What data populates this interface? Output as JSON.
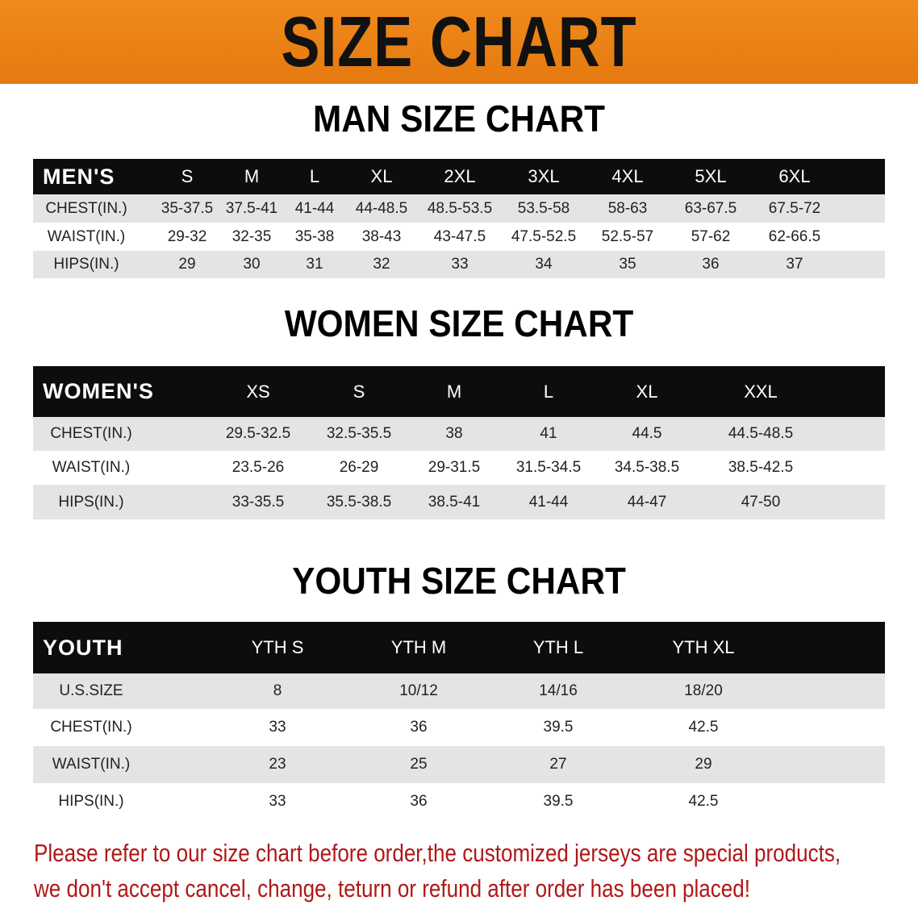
{
  "banner": {
    "title": "SIZE CHART",
    "background_color": "#ee8418"
  },
  "men": {
    "title": "MAN SIZE CHART",
    "header": [
      "MEN'S",
      "S",
      "M",
      "L",
      "XL",
      "2XL",
      "3XL",
      "4XL",
      "5XL",
      "6XL"
    ],
    "rows": [
      [
        "CHEST(IN.)",
        "35-37.5",
        "37.5-41",
        "41-44",
        "44-48.5",
        "48.5-53.5",
        "53.5-58",
        "58-63",
        "63-67.5",
        "67.5-72"
      ],
      [
        "WAIST(IN.)",
        "29-32",
        "32-35",
        "35-38",
        "38-43",
        "43-47.5",
        "47.5-52.5",
        "52.5-57",
        "57-62",
        "62-66.5"
      ],
      [
        "HIPS(IN.)",
        "29",
        "30",
        "31",
        "32",
        "33",
        "34",
        "35",
        "36",
        "37"
      ]
    ]
  },
  "women": {
    "title": "WOMEN SIZE CHART",
    "header": [
      "WOMEN'S",
      "XS",
      "S",
      "M",
      "L",
      "XL",
      "XXL"
    ],
    "rows": [
      [
        "CHEST(IN.)",
        "29.5-32.5",
        "32.5-35.5",
        "38",
        "41",
        "44.5",
        "44.5-48.5"
      ],
      [
        "WAIST(IN.)",
        "23.5-26",
        "26-29",
        "29-31.5",
        "31.5-34.5",
        "34.5-38.5",
        "38.5-42.5"
      ],
      [
        "HIPS(IN.)",
        "33-35.5",
        "35.5-38.5",
        "38.5-41",
        "41-44",
        "44-47",
        "47-50"
      ]
    ]
  },
  "youth": {
    "title": "YOUTH SIZE CHART",
    "header": [
      "YOUTH",
      "YTH S",
      "YTH M",
      "YTH L",
      "YTH XL"
    ],
    "rows": [
      [
        "U.S.SIZE",
        "8",
        "10/12",
        "14/16",
        "18/20"
      ],
      [
        "CHEST(IN.)",
        "33",
        "36",
        "39.5",
        "42.5"
      ],
      [
        "WAIST(IN.)",
        "23",
        "25",
        "27",
        "29"
      ],
      [
        "HIPS(IN.)",
        "33",
        "36",
        "39.5",
        "42.5"
      ]
    ]
  },
  "note": {
    "line1": "Please refer to our size chart before order,the customized jerseys are special products,",
    "line2": "we don't accept cancel, change, teturn or refund after order has been placed!",
    "color": "#b01818"
  }
}
